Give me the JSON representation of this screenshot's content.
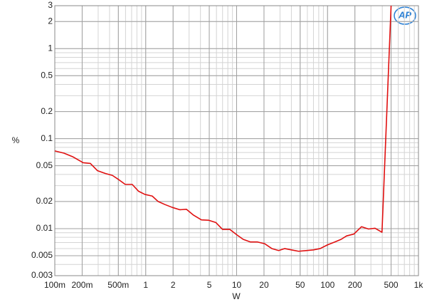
{
  "chart_data": {
    "type": "line",
    "xlabel": "W",
    "ylabel": "%",
    "logo": "AP",
    "log_x": true,
    "log_y": true,
    "grid": true,
    "color": "#e01010",
    "xlim": [
      0.1,
      1000
    ],
    "ylim": [
      0.003,
      3
    ],
    "xticks": [
      {
        "value": 0.1,
        "label": "100m"
      },
      {
        "value": 0.2,
        "label": "200m"
      },
      {
        "value": 0.5,
        "label": "500m"
      },
      1,
      2,
      5,
      10,
      20,
      50,
      100,
      200,
      500,
      {
        "value": 1000,
        "label": "1k"
      }
    ],
    "yticks": [
      3,
      2,
      1,
      0.5,
      0.2,
      0.1,
      0.05,
      0.02,
      0.01,
      0.005,
      0.003
    ],
    "x": [
      0.1,
      0.126,
      0.157,
      0.205,
      0.246,
      0.295,
      0.359,
      0.43,
      0.505,
      0.595,
      0.71,
      0.835,
      0.98,
      1.18,
      1.37,
      1.63,
      1.96,
      2.38,
      2.8,
      3.36,
      4.1,
      4.9,
      5.9,
      7.0,
      8.4,
      10.1,
      11.8,
      14.2,
      17,
      20.3,
      24.4,
      29,
      33.7,
      40,
      48,
      58,
      70,
      83,
      100,
      120,
      141,
      162,
      195,
      236,
      282,
      333,
      397,
      500
    ],
    "values": [
      0.073,
      0.069,
      0.063,
      0.054,
      0.053,
      0.044,
      0.041,
      0.039,
      0.035,
      0.031,
      0.031,
      0.026,
      0.024,
      0.023,
      0.02,
      0.0185,
      0.0172,
      0.0162,
      0.0164,
      0.0141,
      0.0125,
      0.0124,
      0.0117,
      0.0098,
      0.0098,
      0.0085,
      0.0076,
      0.0071,
      0.0071,
      0.0068,
      0.006,
      0.0057,
      0.006,
      0.0058,
      0.0056,
      0.0057,
      0.0058,
      0.006,
      0.0066,
      0.0071,
      0.0076,
      0.0083,
      0.0087,
      0.0105,
      0.0099,
      0.0101,
      0.0091,
      3
    ]
  }
}
